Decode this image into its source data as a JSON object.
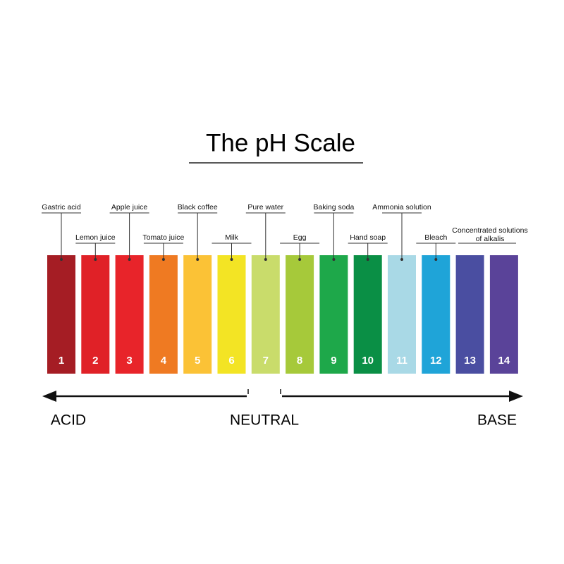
{
  "title": "The pH Scale",
  "strips": [
    {
      "ph": 1,
      "color": "#a51d24",
      "substance": "Gastric acid"
    },
    {
      "ph": 2,
      "color": "#e02127",
      "substance": "Lemon juice"
    },
    {
      "ph": 3,
      "color": "#e8242a",
      "substance": "Apple juice"
    },
    {
      "ph": 4,
      "color": "#ef7a22",
      "substance": "Tomato juice"
    },
    {
      "ph": 5,
      "color": "#fbc236",
      "substance": "Black coffee"
    },
    {
      "ph": 6,
      "color": "#f3e424",
      "substance": "Milk"
    },
    {
      "ph": 7,
      "color": "#c9dc6b",
      "substance": "Pure water"
    },
    {
      "ph": 8,
      "color": "#a6c93a",
      "substance": "Egg"
    },
    {
      "ph": 9,
      "color": "#1ea84a",
      "substance": "Baking soda"
    },
    {
      "ph": 10,
      "color": "#0a8f45",
      "substance": "Hand soap"
    },
    {
      "ph": 11,
      "color": "#a9d9e6",
      "substance": "Ammonia solution"
    },
    {
      "ph": 12,
      "color": "#1fa4d8",
      "substance": "Bleach"
    },
    {
      "ph": 13,
      "color": "#4a4ea1"
    },
    {
      "ph": 14,
      "color": "#5a4399"
    }
  ],
  "alkalis_label": "Concentrated solutions of alkalis",
  "scale_labels": {
    "acid": "ACID",
    "neutral": "NEUTRAL",
    "base": "BASE"
  }
}
